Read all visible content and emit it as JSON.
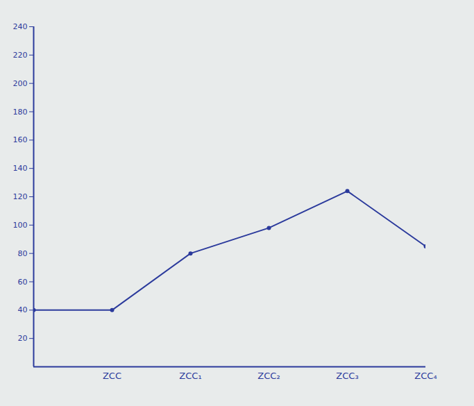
{
  "chart_data": {
    "type": "line",
    "categories": [
      null,
      "ZCC",
      "ZCC₁",
      "ZCC₂",
      "ZCC₃",
      "ZCC₄"
    ],
    "values": [
      40,
      40,
      80,
      98,
      124,
      85
    ],
    "color": "#2b3a9c",
    "marker": "circle",
    "line_style": "solid",
    "ylim": [
      0,
      240
    ],
    "yticks": [
      20,
      40,
      60,
      80,
      100,
      120,
      140,
      160,
      180,
      200,
      220,
      240
    ],
    "grid": false
  }
}
